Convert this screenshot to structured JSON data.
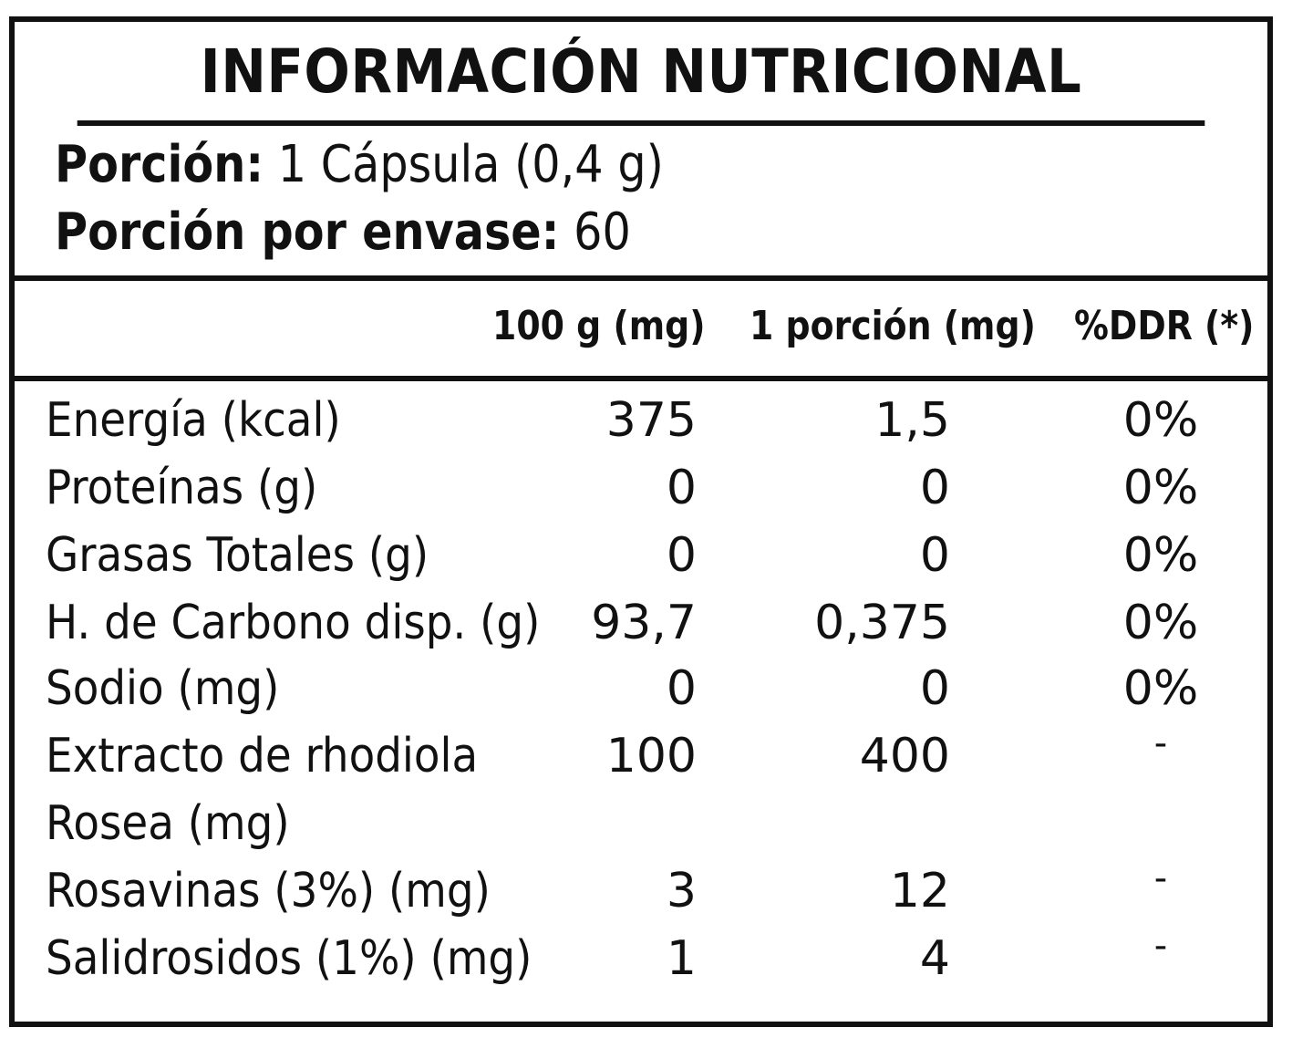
{
  "title": "INFORMACIÓN NUTRICIONAL",
  "serving": {
    "size_label": "Porción:",
    "size_value": " 1 Cápsula (0,4 g)",
    "per_container_label": "Porción por envase:",
    "per_container_value": " 60"
  },
  "columns": {
    "per_100g": "100 g (mg)",
    "per_serving": "1 porción (mg)",
    "ddr": "%DDR (*)"
  },
  "rows": [
    {
      "name": "Energía (kcal)",
      "per_100g": "375",
      "per_serving": "1,5",
      "ddr": "0%"
    },
    {
      "name": "Proteínas (g)",
      "per_100g": "0",
      "per_serving": "0",
      "ddr": "0%"
    },
    {
      "name": "Grasas Totales (g)",
      "per_100g": "0",
      "per_serving": "0",
      "ddr": "0%"
    },
    {
      "name": "H. de Carbono disp. (g)",
      "per_100g": "93,7",
      "per_serving": "0,375",
      "ddr": "0%"
    },
    {
      "name": "Sodio (mg)",
      "per_100g": "0",
      "per_serving": "0",
      "ddr": "0%"
    },
    {
      "name": "Extracto de rhodiola",
      "per_100g": "100",
      "per_serving": "400",
      "ddr": "-"
    },
    {
      "name": "Rosea (mg)",
      "per_100g": "",
      "per_serving": "",
      "ddr": ""
    },
    {
      "name": "Rosavinas (3%) (mg)",
      "per_100g": "3",
      "per_serving": "12",
      "ddr": "-"
    },
    {
      "name": "Salidrosidos (1%) (mg)",
      "per_100g": "1",
      "per_serving": "4",
      "ddr": "-"
    }
  ]
}
